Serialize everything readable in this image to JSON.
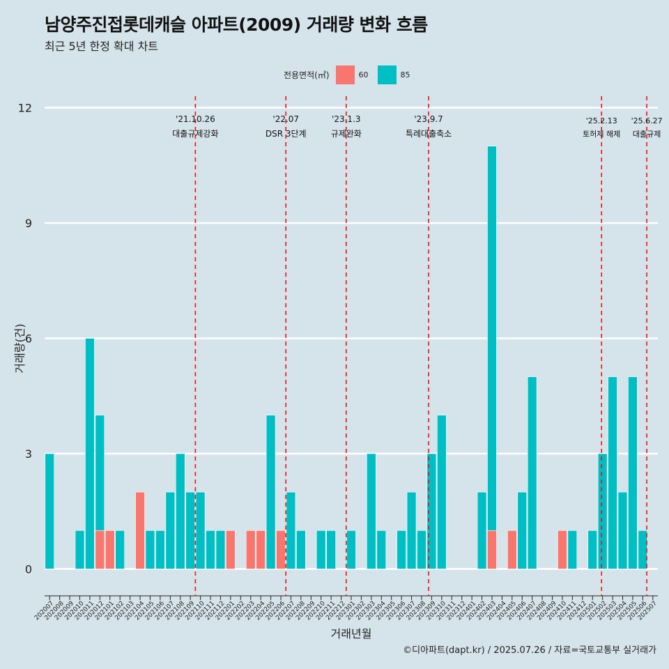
{
  "header": {
    "title": "남양주진접롯데캐슬 아파트(2009) 거래량 변화 흐름",
    "subtitle": "최근 5년 한정 확대 차트"
  },
  "legend": {
    "title": "전용면적(㎡)",
    "items": [
      {
        "label": "60",
        "color": "#f8766d"
      },
      {
        "label": "85",
        "color": "#00bfc4"
      }
    ]
  },
  "caption": "©디아파트(dapt.kr) / 2025.07.26 / 자료=국토교통부 실거래가",
  "chart_data": {
    "type": "bar",
    "stacked": true,
    "xlabel": "거래년월",
    "ylabel": "거래량(건)",
    "ylim": [
      -0.5,
      12.3
    ],
    "yticks": [
      0,
      3,
      6,
      9,
      12
    ],
    "categories": [
      "202007",
      "202008",
      "202009",
      "202010",
      "202011",
      "202012",
      "202101",
      "202102",
      "202103",
      "202104",
      "202105",
      "202106",
      "202107",
      "202108",
      "202109",
      "202110",
      "202111",
      "202112",
      "202201",
      "202202",
      "202203",
      "202204",
      "202205",
      "202206",
      "202207",
      "202208",
      "202209",
      "202210",
      "202211",
      "202212",
      "202301",
      "202302",
      "202303",
      "202304",
      "202305",
      "202306",
      "202307",
      "202308",
      "202309",
      "202310",
      "202311",
      "202312",
      "202401",
      "202402",
      "202403",
      "202404",
      "202405",
      "202406",
      "202407",
      "202408",
      "202409",
      "202410",
      "202411",
      "202412",
      "202501",
      "202502",
      "202503",
      "202504",
      "202505",
      "202506",
      "202507"
    ],
    "series": [
      {
        "name": "60",
        "color": "#f8766d",
        "values": [
          0,
          0,
          0,
          0,
          0,
          1,
          1,
          0,
          0,
          2,
          0,
          0,
          0,
          0,
          0,
          0,
          0,
          0,
          1,
          0,
          1,
          1,
          0,
          1,
          0,
          0,
          0,
          0,
          0,
          0,
          0,
          0,
          0,
          0,
          0,
          0,
          0,
          0,
          0,
          0,
          0,
          0,
          0,
          0,
          1,
          0,
          1,
          0,
          0,
          0,
          0,
          1,
          0,
          0,
          0,
          0,
          0,
          0,
          0,
          0,
          0
        ]
      },
      {
        "name": "85",
        "color": "#00bfc4",
        "values": [
          3,
          0,
          0,
          1,
          6,
          3,
          0,
          1,
          0,
          0,
          1,
          1,
          2,
          3,
          2,
          2,
          1,
          1,
          0,
          0,
          0,
          0,
          4,
          0,
          2,
          1,
          0,
          1,
          1,
          0,
          1,
          0,
          3,
          1,
          0,
          1,
          2,
          1,
          3,
          4,
          0,
          0,
          0,
          2,
          10,
          0,
          0,
          2,
          5,
          0,
          0,
          0,
          1,
          0,
          1,
          3,
          5,
          2,
          5,
          1,
          0
        ]
      }
    ],
    "events": [
      {
        "date": "'21.10.26",
        "label": "대출규제강화",
        "position": 15.0
      },
      {
        "date": "'22.07",
        "label": "DSR 3단계",
        "position": 24.0
      },
      {
        "date": "'23.1.3",
        "label": "규제완화",
        "position": 30.0
      },
      {
        "date": "'23.9.7",
        "label": "특례대출축소",
        "position": 38.2
      },
      {
        "date": "'25.2.13",
        "label": "토허제 해제",
        "position": 55.4
      },
      {
        "date": "'25.6.27",
        "label": "대출규제",
        "position": 59.9
      }
    ]
  }
}
